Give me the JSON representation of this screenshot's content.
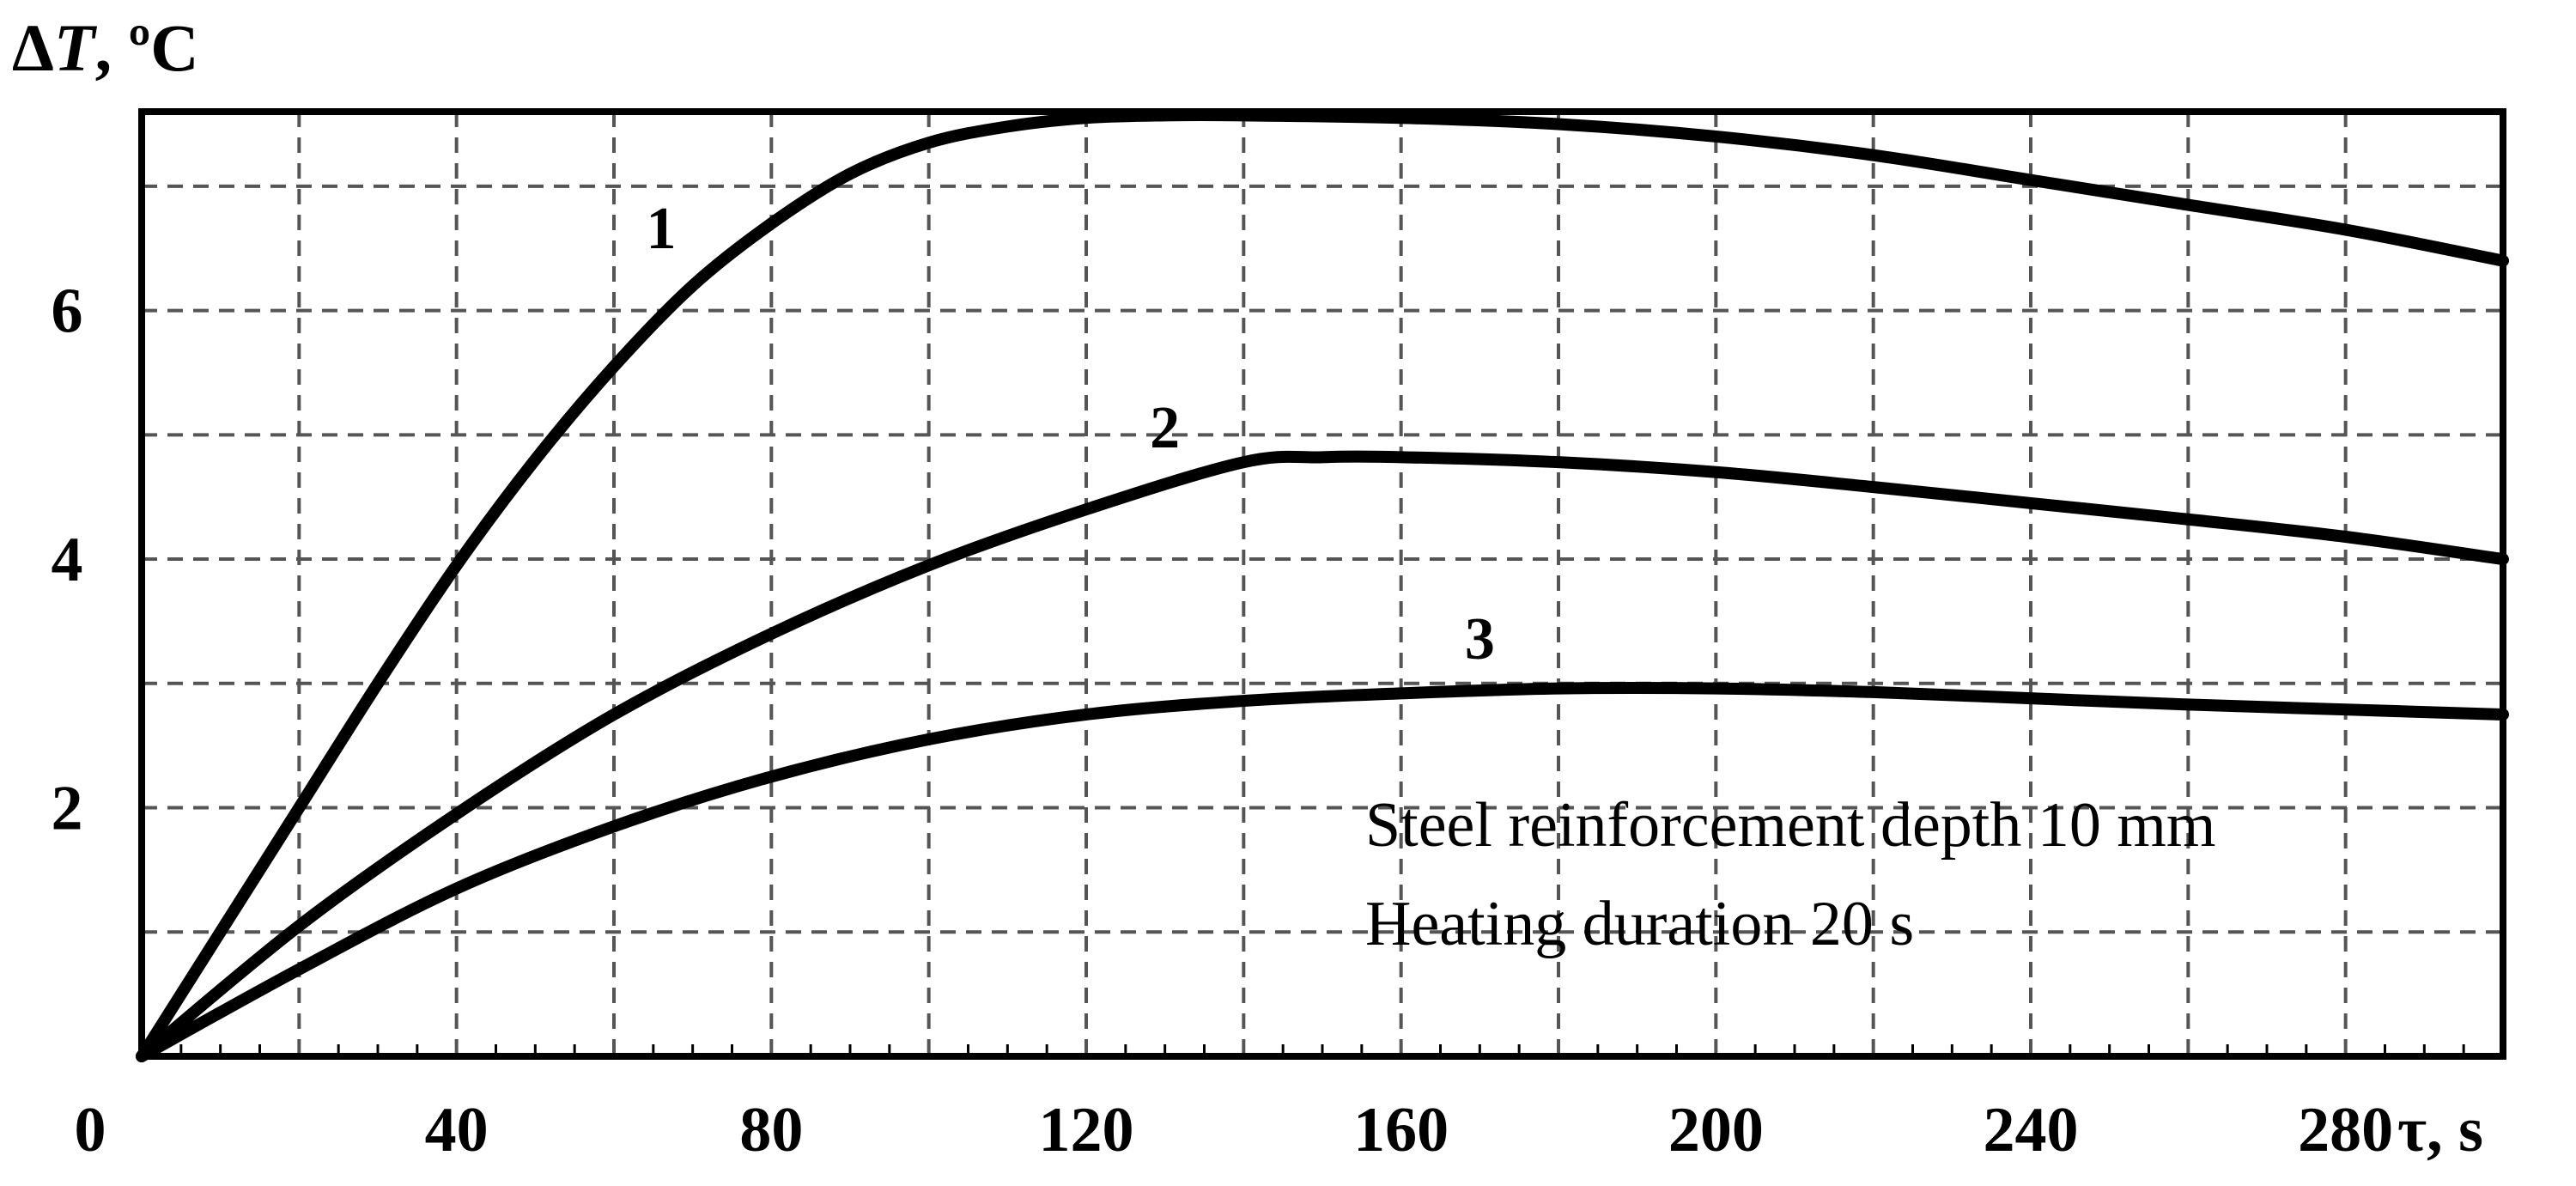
{
  "chart_data": {
    "type": "line",
    "ylabel_delta": "Δ",
    "ylabel_var": "T",
    "ylabel_unit": ", ºC",
    "xlabel": "τ, s",
    "xlim": [
      0,
      300
    ],
    "ylim": [
      0,
      7.6
    ],
    "grid": true,
    "x_ticks": [
      0,
      40,
      80,
      120,
      160,
      200,
      240,
      280
    ],
    "x_tick_labels": [
      "0",
      "40",
      "80",
      "120",
      "160",
      "200",
      "240",
      "280"
    ],
    "y_ticks": [
      2,
      4,
      6
    ],
    "y_tick_labels": [
      "2",
      "4",
      "6"
    ],
    "annotations": [
      "Steel reinforcement depth 10 mm",
      "Heating duration 20 s"
    ],
    "series": [
      {
        "name": "1",
        "x": [
          0,
          10,
          20,
          30,
          40,
          50,
          60,
          70,
          80,
          90,
          100,
          110,
          120,
          130,
          140,
          160,
          180,
          200,
          220,
          240,
          260,
          280,
          300
        ],
        "y": [
          0,
          1.0,
          2.0,
          3.0,
          3.95,
          4.8,
          5.55,
          6.2,
          6.7,
          7.1,
          7.35,
          7.48,
          7.55,
          7.57,
          7.57,
          7.55,
          7.5,
          7.4,
          7.25,
          7.05,
          6.85,
          6.65,
          6.4
        ]
      },
      {
        "name": "2",
        "x": [
          0,
          20,
          40,
          60,
          80,
          100,
          120,
          140,
          150,
          160,
          180,
          200,
          220,
          240,
          260,
          280,
          300
        ],
        "y": [
          0,
          1.05,
          1.95,
          2.75,
          3.4,
          3.95,
          4.4,
          4.78,
          4.82,
          4.82,
          4.78,
          4.7,
          4.58,
          4.45,
          4.32,
          4.18,
          4.0
        ]
      },
      {
        "name": "3",
        "x": [
          0,
          20,
          40,
          60,
          80,
          100,
          120,
          140,
          160,
          180,
          200,
          220,
          240,
          260,
          280,
          300
        ],
        "y": [
          0,
          0.7,
          1.35,
          1.85,
          2.25,
          2.55,
          2.75,
          2.86,
          2.92,
          2.96,
          2.96,
          2.93,
          2.88,
          2.83,
          2.79,
          2.75
        ]
      }
    ],
    "series_label_positions": [
      {
        "x": 66,
        "y": 6.5
      },
      {
        "x": 130,
        "y": 4.9
      },
      {
        "x": 170,
        "y": 3.2
      }
    ]
  }
}
